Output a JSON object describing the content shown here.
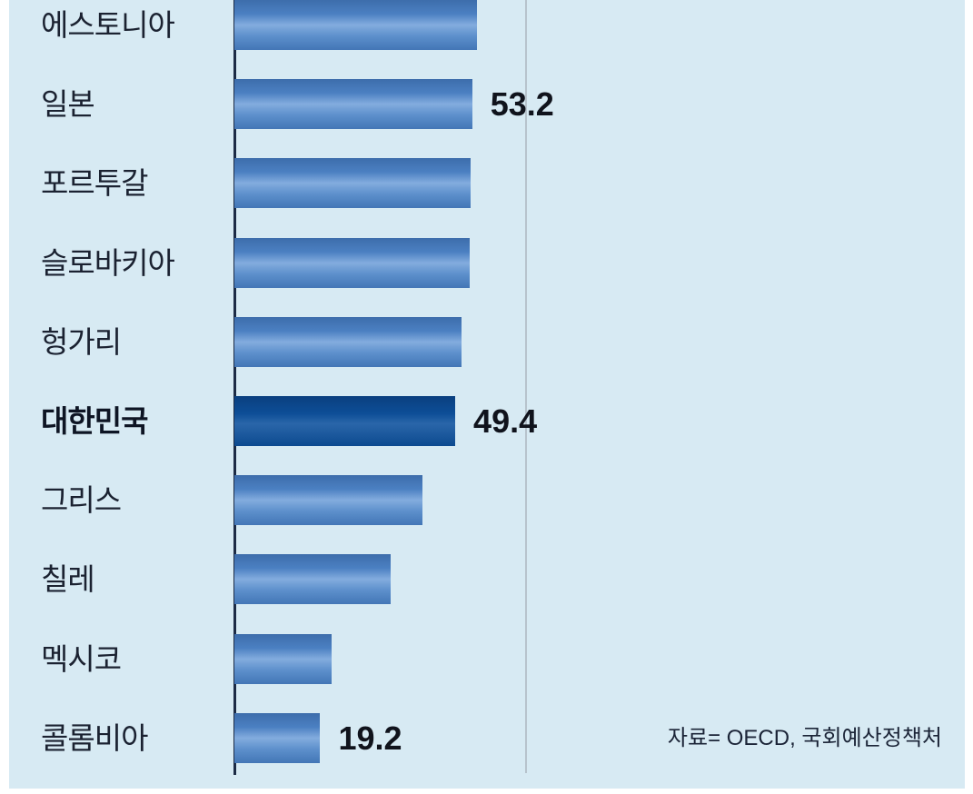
{
  "chart_data": {
    "type": "bar",
    "orientation": "horizontal",
    "title": "",
    "xlabel": "",
    "ylabel": "",
    "xlim": [
      0,
      65
    ],
    "gridline_value": 65,
    "categories": [
      "에스토니아",
      "일본",
      "포르투갈",
      "슬로바키아",
      "헝가리",
      "대한민국",
      "그리스",
      "칠레",
      "멕시코",
      "콜롬비아"
    ],
    "values": [
      54.2,
      53.2,
      52.9,
      52.6,
      50.9,
      49.4,
      42.0,
      35.0,
      21.8,
      19.2
    ],
    "bars": [
      {
        "label": "에스토니아",
        "value": 54.2
      },
      {
        "label": "일본",
        "value": 53.2,
        "value_label": "53.2"
      },
      {
        "label": "포르투갈",
        "value": 52.9
      },
      {
        "label": "슬로바키아",
        "value": 52.6
      },
      {
        "label": "헝가리",
        "value": 50.9
      },
      {
        "label": "대한민국",
        "value": 49.4,
        "value_label": "49.4",
        "highlight": true
      },
      {
        "label": "그리스",
        "value": 42.0
      },
      {
        "label": "칠레",
        "value": 35.0
      },
      {
        "label": "멕시코",
        "value": 21.8
      },
      {
        "label": "콜롬비아",
        "value": 19.2,
        "value_label": "19.2"
      }
    ],
    "highlight_category": "대한민국",
    "source": "자료= OECD, 국회예산정책처",
    "legend": "off",
    "colors": {
      "background": "#d7eaf3",
      "bar": "#4b80c2",
      "bar_highlight_band": "#83acde",
      "korea_bar": "#0d4e97",
      "axis": "#1c2b45",
      "gridline": "#b7c3cc",
      "label_text": "#1b2231",
      "value_text": "#10131c"
    }
  }
}
